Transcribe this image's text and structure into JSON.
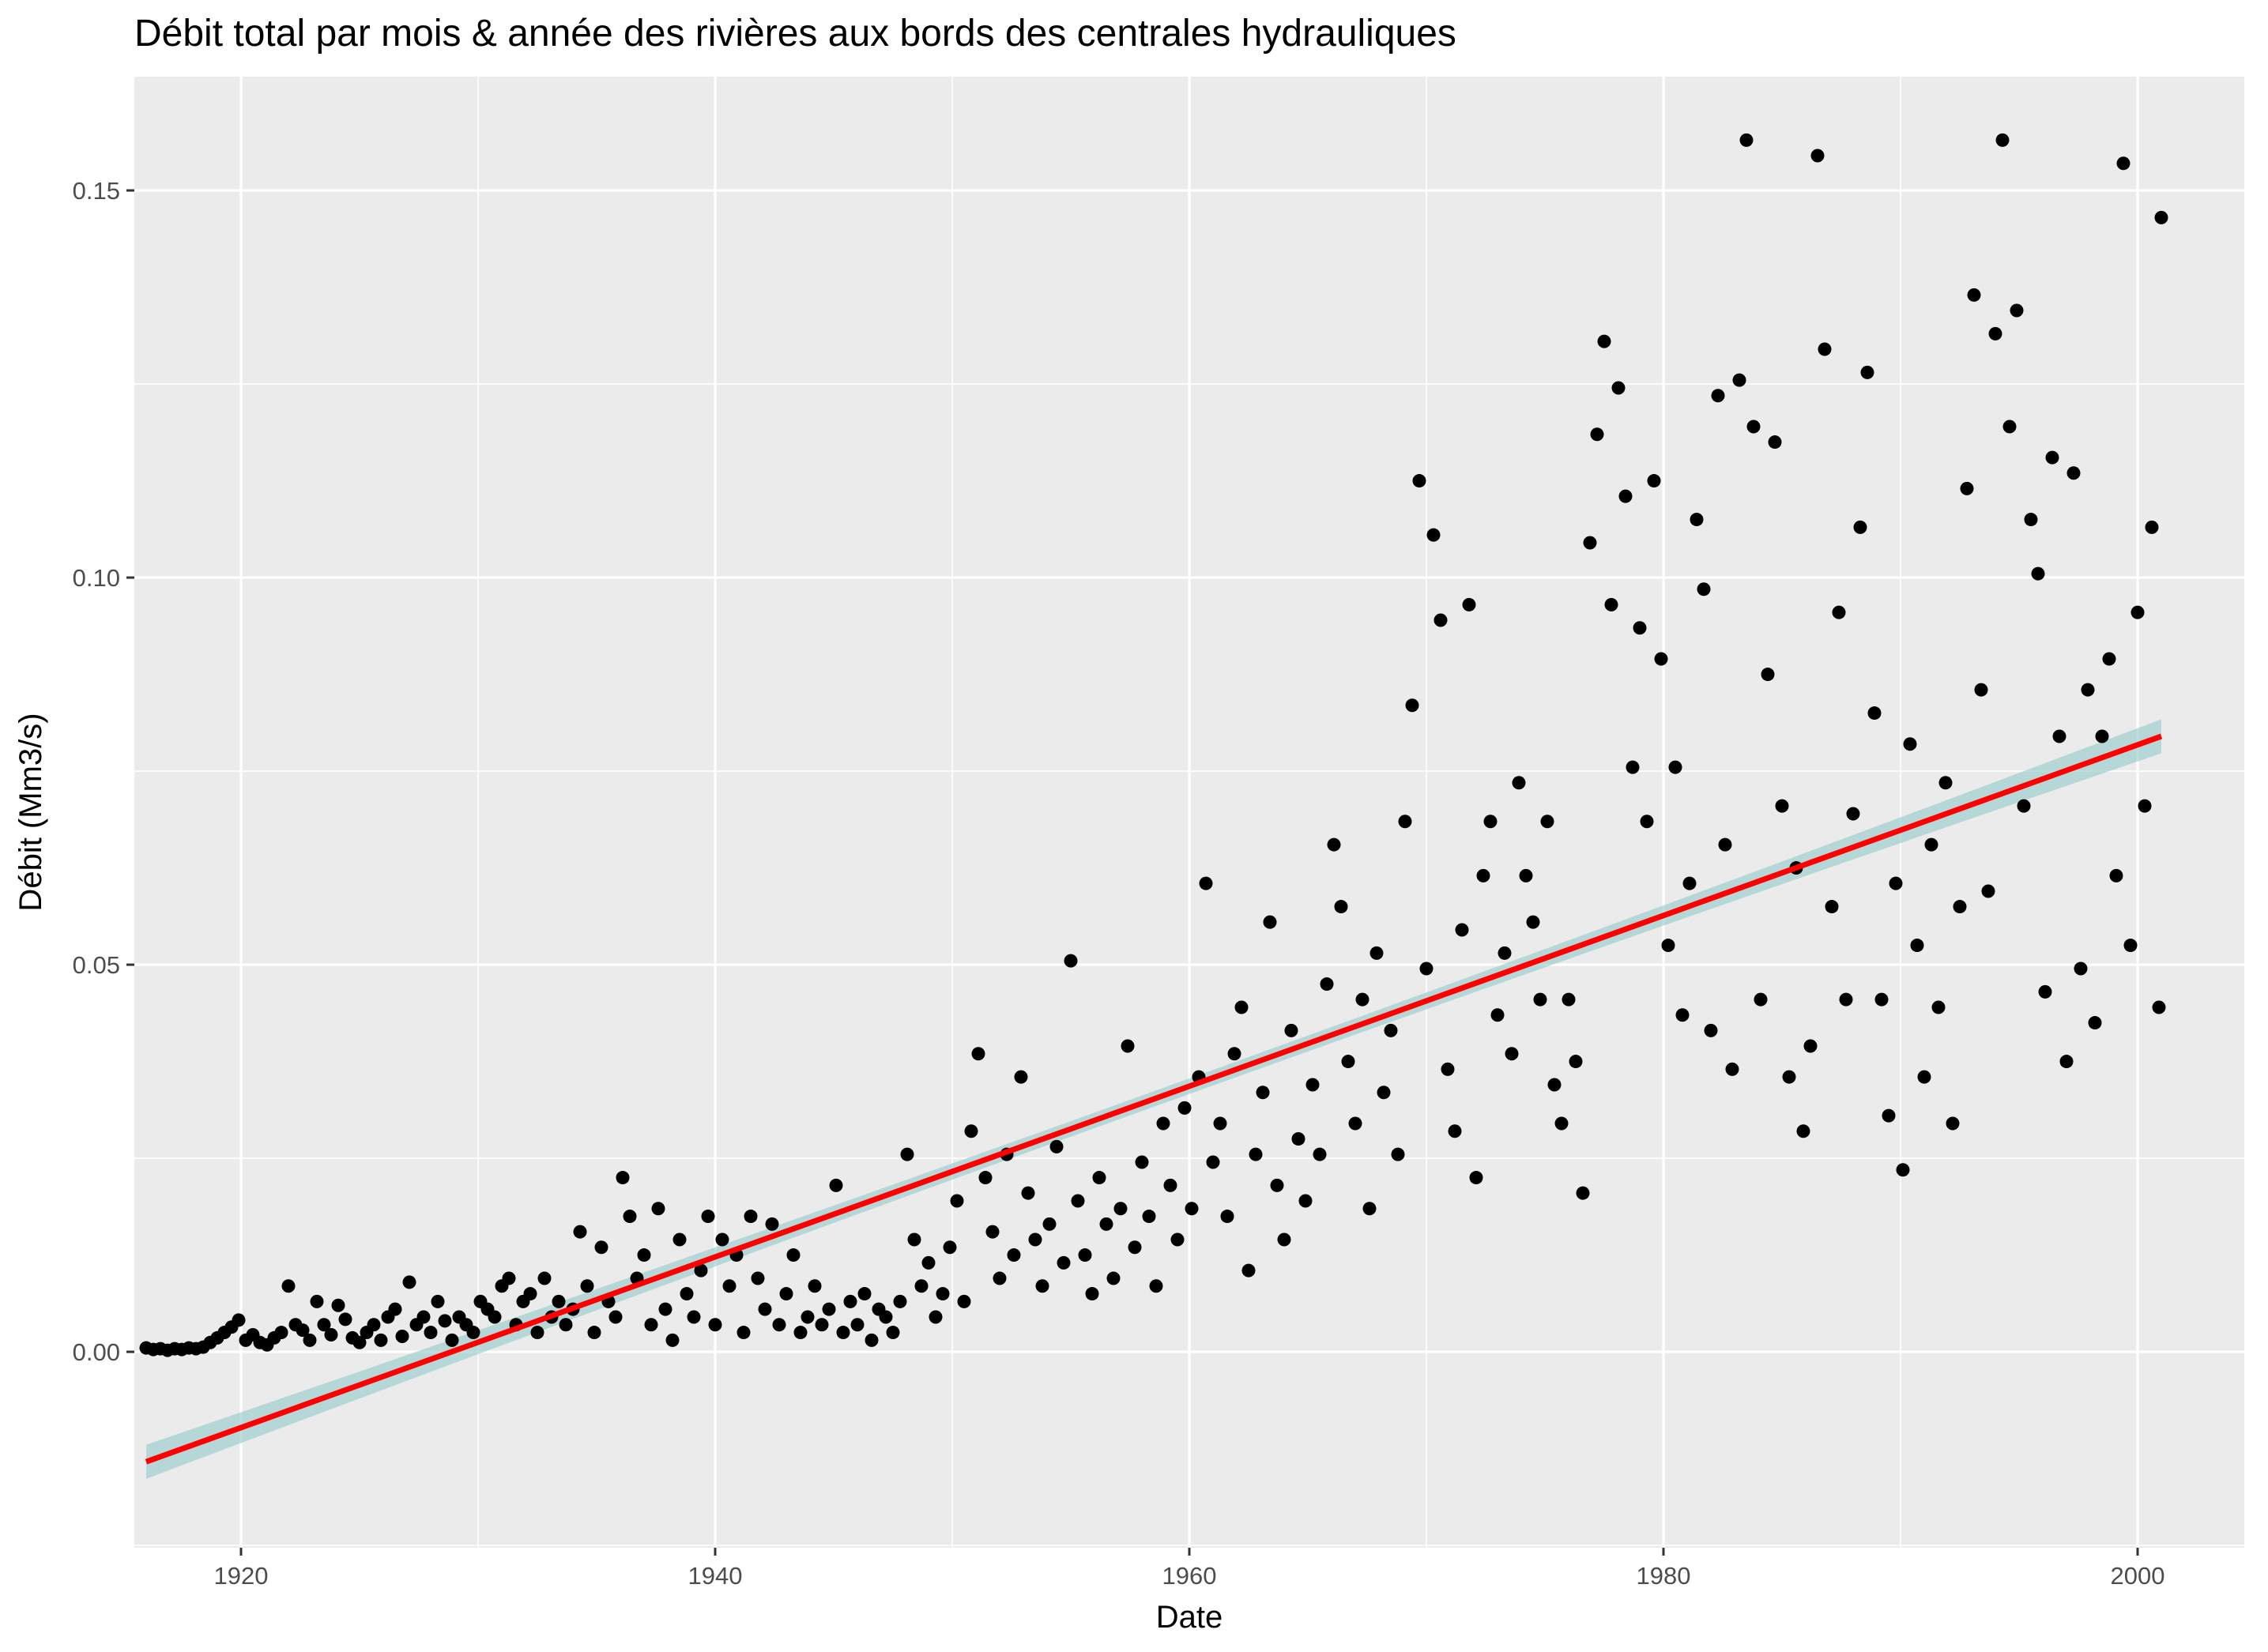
{
  "chart_data": {
    "type": "scatter",
    "title": "Débit total par mois & année des rivières aux bords des centrales hydrauliques",
    "xlabel": "Date",
    "ylabel": "Débit (Mm3/s)",
    "xlim": [
      1915.5,
      2004.5
    ],
    "ylim": [
      -0.0253,
      0.1647
    ],
    "x_ticks": [
      1920,
      1940,
      1960,
      1980,
      2000
    ],
    "x_tick_labels": [
      "1920",
      "1940",
      "1960",
      "1980",
      "2000"
    ],
    "y_ticks": [
      0.0,
      0.05,
      0.1,
      0.15
    ],
    "y_tick_labels": [
      "0.00",
      "0.05",
      "0.10",
      "0.15"
    ],
    "grid": true,
    "legend": "none",
    "colors": {
      "panel": "#ebebeb",
      "grid": "#ffffff",
      "points": "#000000",
      "regression_line": "#ff0000",
      "confidence_band": "#99cccc"
    },
    "regression": {
      "method": "linear",
      "start": {
        "x": 1916.0,
        "y": -0.0142
      },
      "end": {
        "x": 2001.0,
        "y": 0.0795
      },
      "band_halfwidth_edges": 0.0022,
      "band_halfwidth_center": 0.001
    },
    "series": [
      {
        "points": [
          [
            1916.0,
            0.0005
          ],
          [
            1916.3,
            0.0003
          ],
          [
            1916.6,
            0.0004
          ],
          [
            1916.9,
            0.0002
          ],
          [
            1917.2,
            0.0004
          ],
          [
            1917.5,
            0.0003
          ],
          [
            1917.8,
            0.0005
          ],
          [
            1918.1,
            0.0004
          ],
          [
            1918.4,
            0.0006
          ],
          [
            1918.7,
            0.0012
          ],
          [
            1919.0,
            0.0018
          ],
          [
            1919.3,
            0.0025
          ],
          [
            1919.6,
            0.0032
          ],
          [
            1919.9,
            0.0041
          ],
          [
            1920.2,
            0.0015
          ],
          [
            1920.5,
            0.0022
          ],
          [
            1920.8,
            0.0012
          ],
          [
            1921.1,
            0.0009
          ],
          [
            1921.4,
            0.0018
          ],
          [
            1921.7,
            0.0025
          ],
          [
            1922.0,
            0.0085
          ],
          [
            1922.3,
            0.0035
          ],
          [
            1922.6,
            0.0028
          ],
          [
            1922.9,
            0.0015
          ],
          [
            1923.2,
            0.0065
          ],
          [
            1923.5,
            0.0035
          ],
          [
            1923.8,
            0.0022
          ],
          [
            1924.1,
            0.006
          ],
          [
            1924.4,
            0.0042
          ],
          [
            1924.7,
            0.0018
          ],
          [
            1925.0,
            0.0012
          ],
          [
            1925.3,
            0.0025
          ],
          [
            1925.6,
            0.0035
          ],
          [
            1925.9,
            0.0015
          ],
          [
            1926.2,
            0.0045
          ],
          [
            1926.5,
            0.0055
          ],
          [
            1926.8,
            0.002
          ],
          [
            1927.1,
            0.009
          ],
          [
            1927.4,
            0.0035
          ],
          [
            1927.7,
            0.0045
          ],
          [
            1928.0,
            0.0025
          ],
          [
            1928.3,
            0.0065
          ],
          [
            1928.6,
            0.004
          ],
          [
            1928.9,
            0.0015
          ],
          [
            1929.2,
            0.0045
          ],
          [
            1929.5,
            0.0035
          ],
          [
            1929.8,
            0.0025
          ],
          [
            1930.1,
            0.0065
          ],
          [
            1930.4,
            0.0055
          ],
          [
            1930.7,
            0.0045
          ],
          [
            1931.0,
            0.0085
          ],
          [
            1931.3,
            0.0095
          ],
          [
            1931.6,
            0.0035
          ],
          [
            1931.9,
            0.0065
          ],
          [
            1932.2,
            0.0075
          ],
          [
            1932.5,
            0.0025
          ],
          [
            1932.8,
            0.0095
          ],
          [
            1933.1,
            0.0045
          ],
          [
            1933.4,
            0.0065
          ],
          [
            1933.7,
            0.0035
          ],
          [
            1934.0,
            0.0055
          ],
          [
            1934.3,
            0.0155
          ],
          [
            1934.6,
            0.0085
          ],
          [
            1934.9,
            0.0025
          ],
          [
            1935.2,
            0.0135
          ],
          [
            1935.5,
            0.0065
          ],
          [
            1935.8,
            0.0045
          ],
          [
            1936.1,
            0.0225
          ],
          [
            1936.4,
            0.0175
          ],
          [
            1936.7,
            0.0095
          ],
          [
            1937.0,
            0.0125
          ],
          [
            1937.3,
            0.0035
          ],
          [
            1937.6,
            0.0185
          ],
          [
            1937.9,
            0.0055
          ],
          [
            1938.2,
            0.0015
          ],
          [
            1938.5,
            0.0145
          ],
          [
            1938.8,
            0.0075
          ],
          [
            1939.1,
            0.0045
          ],
          [
            1939.4,
            0.0105
          ],
          [
            1939.7,
            0.0175
          ],
          [
            1940.0,
            0.0035
          ],
          [
            1940.3,
            0.0145
          ],
          [
            1940.6,
            0.0085
          ],
          [
            1940.9,
            0.0125
          ],
          [
            1941.2,
            0.0025
          ],
          [
            1941.5,
            0.0175
          ],
          [
            1941.8,
            0.0095
          ],
          [
            1942.1,
            0.0055
          ],
          [
            1942.4,
            0.0165
          ],
          [
            1942.7,
            0.0035
          ],
          [
            1943.0,
            0.0075
          ],
          [
            1943.3,
            0.0125
          ],
          [
            1943.6,
            0.0025
          ],
          [
            1943.9,
            0.0045
          ],
          [
            1944.2,
            0.0085
          ],
          [
            1944.5,
            0.0035
          ],
          [
            1944.8,
            0.0055
          ],
          [
            1945.1,
            0.0215
          ],
          [
            1945.4,
            0.0025
          ],
          [
            1945.7,
            0.0065
          ],
          [
            1946.0,
            0.0035
          ],
          [
            1946.3,
            0.0075
          ],
          [
            1946.6,
            0.0015
          ],
          [
            1946.9,
            0.0055
          ],
          [
            1947.2,
            0.0045
          ],
          [
            1947.5,
            0.0025
          ],
          [
            1947.8,
            0.0065
          ],
          [
            1948.1,
            0.0255
          ],
          [
            1948.4,
            0.0145
          ],
          [
            1948.7,
            0.0085
          ],
          [
            1949.0,
            0.0115
          ],
          [
            1949.3,
            0.0045
          ],
          [
            1949.6,
            0.0075
          ],
          [
            1949.9,
            0.0135
          ],
          [
            1950.2,
            0.0195
          ],
          [
            1950.5,
            0.0065
          ],
          [
            1950.8,
            0.0285
          ],
          [
            1951.1,
            0.0385
          ],
          [
            1951.4,
            0.0225
          ],
          [
            1951.7,
            0.0155
          ],
          [
            1952.0,
            0.0095
          ],
          [
            1952.3,
            0.0255
          ],
          [
            1952.6,
            0.0125
          ],
          [
            1952.9,
            0.0355
          ],
          [
            1953.2,
            0.0205
          ],
          [
            1953.5,
            0.0145
          ],
          [
            1953.8,
            0.0085
          ],
          [
            1954.1,
            0.0165
          ],
          [
            1954.4,
            0.0265
          ],
          [
            1954.7,
            0.0115
          ],
          [
            1955.0,
            0.0505
          ],
          [
            1955.3,
            0.0195
          ],
          [
            1955.6,
            0.0125
          ],
          [
            1955.9,
            0.0075
          ],
          [
            1956.2,
            0.0225
          ],
          [
            1956.5,
            0.0165
          ],
          [
            1956.8,
            0.0095
          ],
          [
            1957.1,
            0.0185
          ],
          [
            1957.4,
            0.0395
          ],
          [
            1957.7,
            0.0135
          ],
          [
            1958.0,
            0.0245
          ],
          [
            1958.3,
            0.0175
          ],
          [
            1958.6,
            0.0085
          ],
          [
            1958.9,
            0.0295
          ],
          [
            1959.2,
            0.0215
          ],
          [
            1959.5,
            0.0145
          ],
          [
            1959.8,
            0.0315
          ],
          [
            1960.1,
            0.0185
          ],
          [
            1960.4,
            0.0355
          ],
          [
            1960.7,
            0.0605
          ],
          [
            1961.0,
            0.0245
          ],
          [
            1961.3,
            0.0295
          ],
          [
            1961.6,
            0.0175
          ],
          [
            1961.9,
            0.0385
          ],
          [
            1962.2,
            0.0445
          ],
          [
            1962.5,
            0.0105
          ],
          [
            1962.8,
            0.0255
          ],
          [
            1963.1,
            0.0335
          ],
          [
            1963.4,
            0.0555
          ],
          [
            1963.7,
            0.0215
          ],
          [
            1964.0,
            0.0145
          ],
          [
            1964.3,
            0.0415
          ],
          [
            1964.6,
            0.0275
          ],
          [
            1964.9,
            0.0195
          ],
          [
            1965.2,
            0.0345
          ],
          [
            1965.5,
            0.0255
          ],
          [
            1965.8,
            0.0475
          ],
          [
            1966.1,
            0.0655
          ],
          [
            1966.4,
            0.0575
          ],
          [
            1966.7,
            0.0375
          ],
          [
            1967.0,
            0.0295
          ],
          [
            1967.3,
            0.0455
          ],
          [
            1967.6,
            0.0185
          ],
          [
            1967.9,
            0.0515
          ],
          [
            1968.2,
            0.0335
          ],
          [
            1968.5,
            0.0415
          ],
          [
            1968.8,
            0.0255
          ],
          [
            1969.1,
            0.0685
          ],
          [
            1969.4,
            0.0835
          ],
          [
            1969.7,
            0.1125
          ],
          [
            1970.0,
            0.0495
          ],
          [
            1970.3,
            0.1055
          ],
          [
            1970.6,
            0.0945
          ],
          [
            1970.9,
            0.0365
          ],
          [
            1971.2,
            0.0285
          ],
          [
            1971.5,
            0.0545
          ],
          [
            1971.8,
            0.0965
          ],
          [
            1972.1,
            0.0225
          ],
          [
            1972.4,
            0.0615
          ],
          [
            1972.7,
            0.0685
          ],
          [
            1973.0,
            0.0435
          ],
          [
            1973.3,
            0.0515
          ],
          [
            1973.6,
            0.0385
          ],
          [
            1973.9,
            0.0735
          ],
          [
            1974.2,
            0.0615
          ],
          [
            1974.5,
            0.0555
          ],
          [
            1974.8,
            0.0455
          ],
          [
            1975.1,
            0.0685
          ],
          [
            1975.4,
            0.0345
          ],
          [
            1975.7,
            0.0295
          ],
          [
            1976.0,
            0.0455
          ],
          [
            1976.3,
            0.0375
          ],
          [
            1976.6,
            0.0205
          ],
          [
            1976.9,
            0.1045
          ],
          [
            1977.2,
            0.1185
          ],
          [
            1977.5,
            0.1305
          ],
          [
            1977.8,
            0.0965
          ],
          [
            1978.1,
            0.1245
          ],
          [
            1978.4,
            0.1105
          ],
          [
            1978.7,
            0.0755
          ],
          [
            1979.0,
            0.0935
          ],
          [
            1979.3,
            0.0685
          ],
          [
            1979.6,
            0.1125
          ],
          [
            1979.9,
            0.0895
          ],
          [
            1980.2,
            0.0525
          ],
          [
            1980.5,
            0.0755
          ],
          [
            1980.8,
            0.0435
          ],
          [
            1981.1,
            0.0605
          ],
          [
            1981.4,
            0.1075
          ],
          [
            1981.7,
            0.0985
          ],
          [
            1982.0,
            0.0415
          ],
          [
            1982.3,
            0.1235
          ],
          [
            1982.6,
            0.0655
          ],
          [
            1982.9,
            0.0365
          ],
          [
            1983.2,
            0.1255
          ],
          [
            1983.5,
            0.1565
          ],
          [
            1983.8,
            0.1195
          ],
          [
            1984.1,
            0.0455
          ],
          [
            1984.4,
            0.0875
          ],
          [
            1984.7,
            0.1175
          ],
          [
            1985.0,
            0.0705
          ],
          [
            1985.3,
            0.0355
          ],
          [
            1985.6,
            0.0625
          ],
          [
            1985.9,
            0.0285
          ],
          [
            1986.2,
            0.0395
          ],
          [
            1986.5,
            0.1545
          ],
          [
            1986.8,
            0.1295
          ],
          [
            1987.1,
            0.0575
          ],
          [
            1987.4,
            0.0955
          ],
          [
            1987.7,
            0.0455
          ],
          [
            1988.0,
            0.0695
          ],
          [
            1988.3,
            0.1065
          ],
          [
            1988.6,
            0.1265
          ],
          [
            1988.9,
            0.0825
          ],
          [
            1989.2,
            0.0455
          ],
          [
            1989.5,
            0.0305
          ],
          [
            1989.8,
            0.0605
          ],
          [
            1990.1,
            0.0235
          ],
          [
            1990.4,
            0.0785
          ],
          [
            1990.7,
            0.0525
          ],
          [
            1991.0,
            0.0355
          ],
          [
            1991.3,
            0.0655
          ],
          [
            1991.6,
            0.0445
          ],
          [
            1991.9,
            0.0735
          ],
          [
            1992.2,
            0.0295
          ],
          [
            1992.5,
            0.0575
          ],
          [
            1992.8,
            0.1115
          ],
          [
            1993.1,
            0.1365
          ],
          [
            1993.4,
            0.0855
          ],
          [
            1993.7,
            0.0595
          ],
          [
            1994.0,
            0.1315
          ],
          [
            1994.3,
            0.1565
          ],
          [
            1994.6,
            0.1195
          ],
          [
            1994.9,
            0.1345
          ],
          [
            1995.2,
            0.0705
          ],
          [
            1995.5,
            0.1075
          ],
          [
            1995.8,
            0.1005
          ],
          [
            1996.1,
            0.0465
          ],
          [
            1996.4,
            0.1155
          ],
          [
            1996.7,
            0.0795
          ],
          [
            1997.0,
            0.0375
          ],
          [
            1997.3,
            0.1135
          ],
          [
            1997.6,
            0.0495
          ],
          [
            1997.9,
            0.0855
          ],
          [
            1998.2,
            0.0425
          ],
          [
            1998.5,
            0.0795
          ],
          [
            1998.8,
            0.0895
          ],
          [
            1999.1,
            0.0615
          ],
          [
            1999.4,
            0.1535
          ],
          [
            1999.7,
            0.0525
          ],
          [
            2000.0,
            0.0955
          ],
          [
            2000.3,
            0.0705
          ],
          [
            2000.6,
            0.1065
          ],
          [
            2000.9,
            0.0445
          ],
          [
            2001.0,
            0.1465
          ]
        ]
      }
    ]
  }
}
